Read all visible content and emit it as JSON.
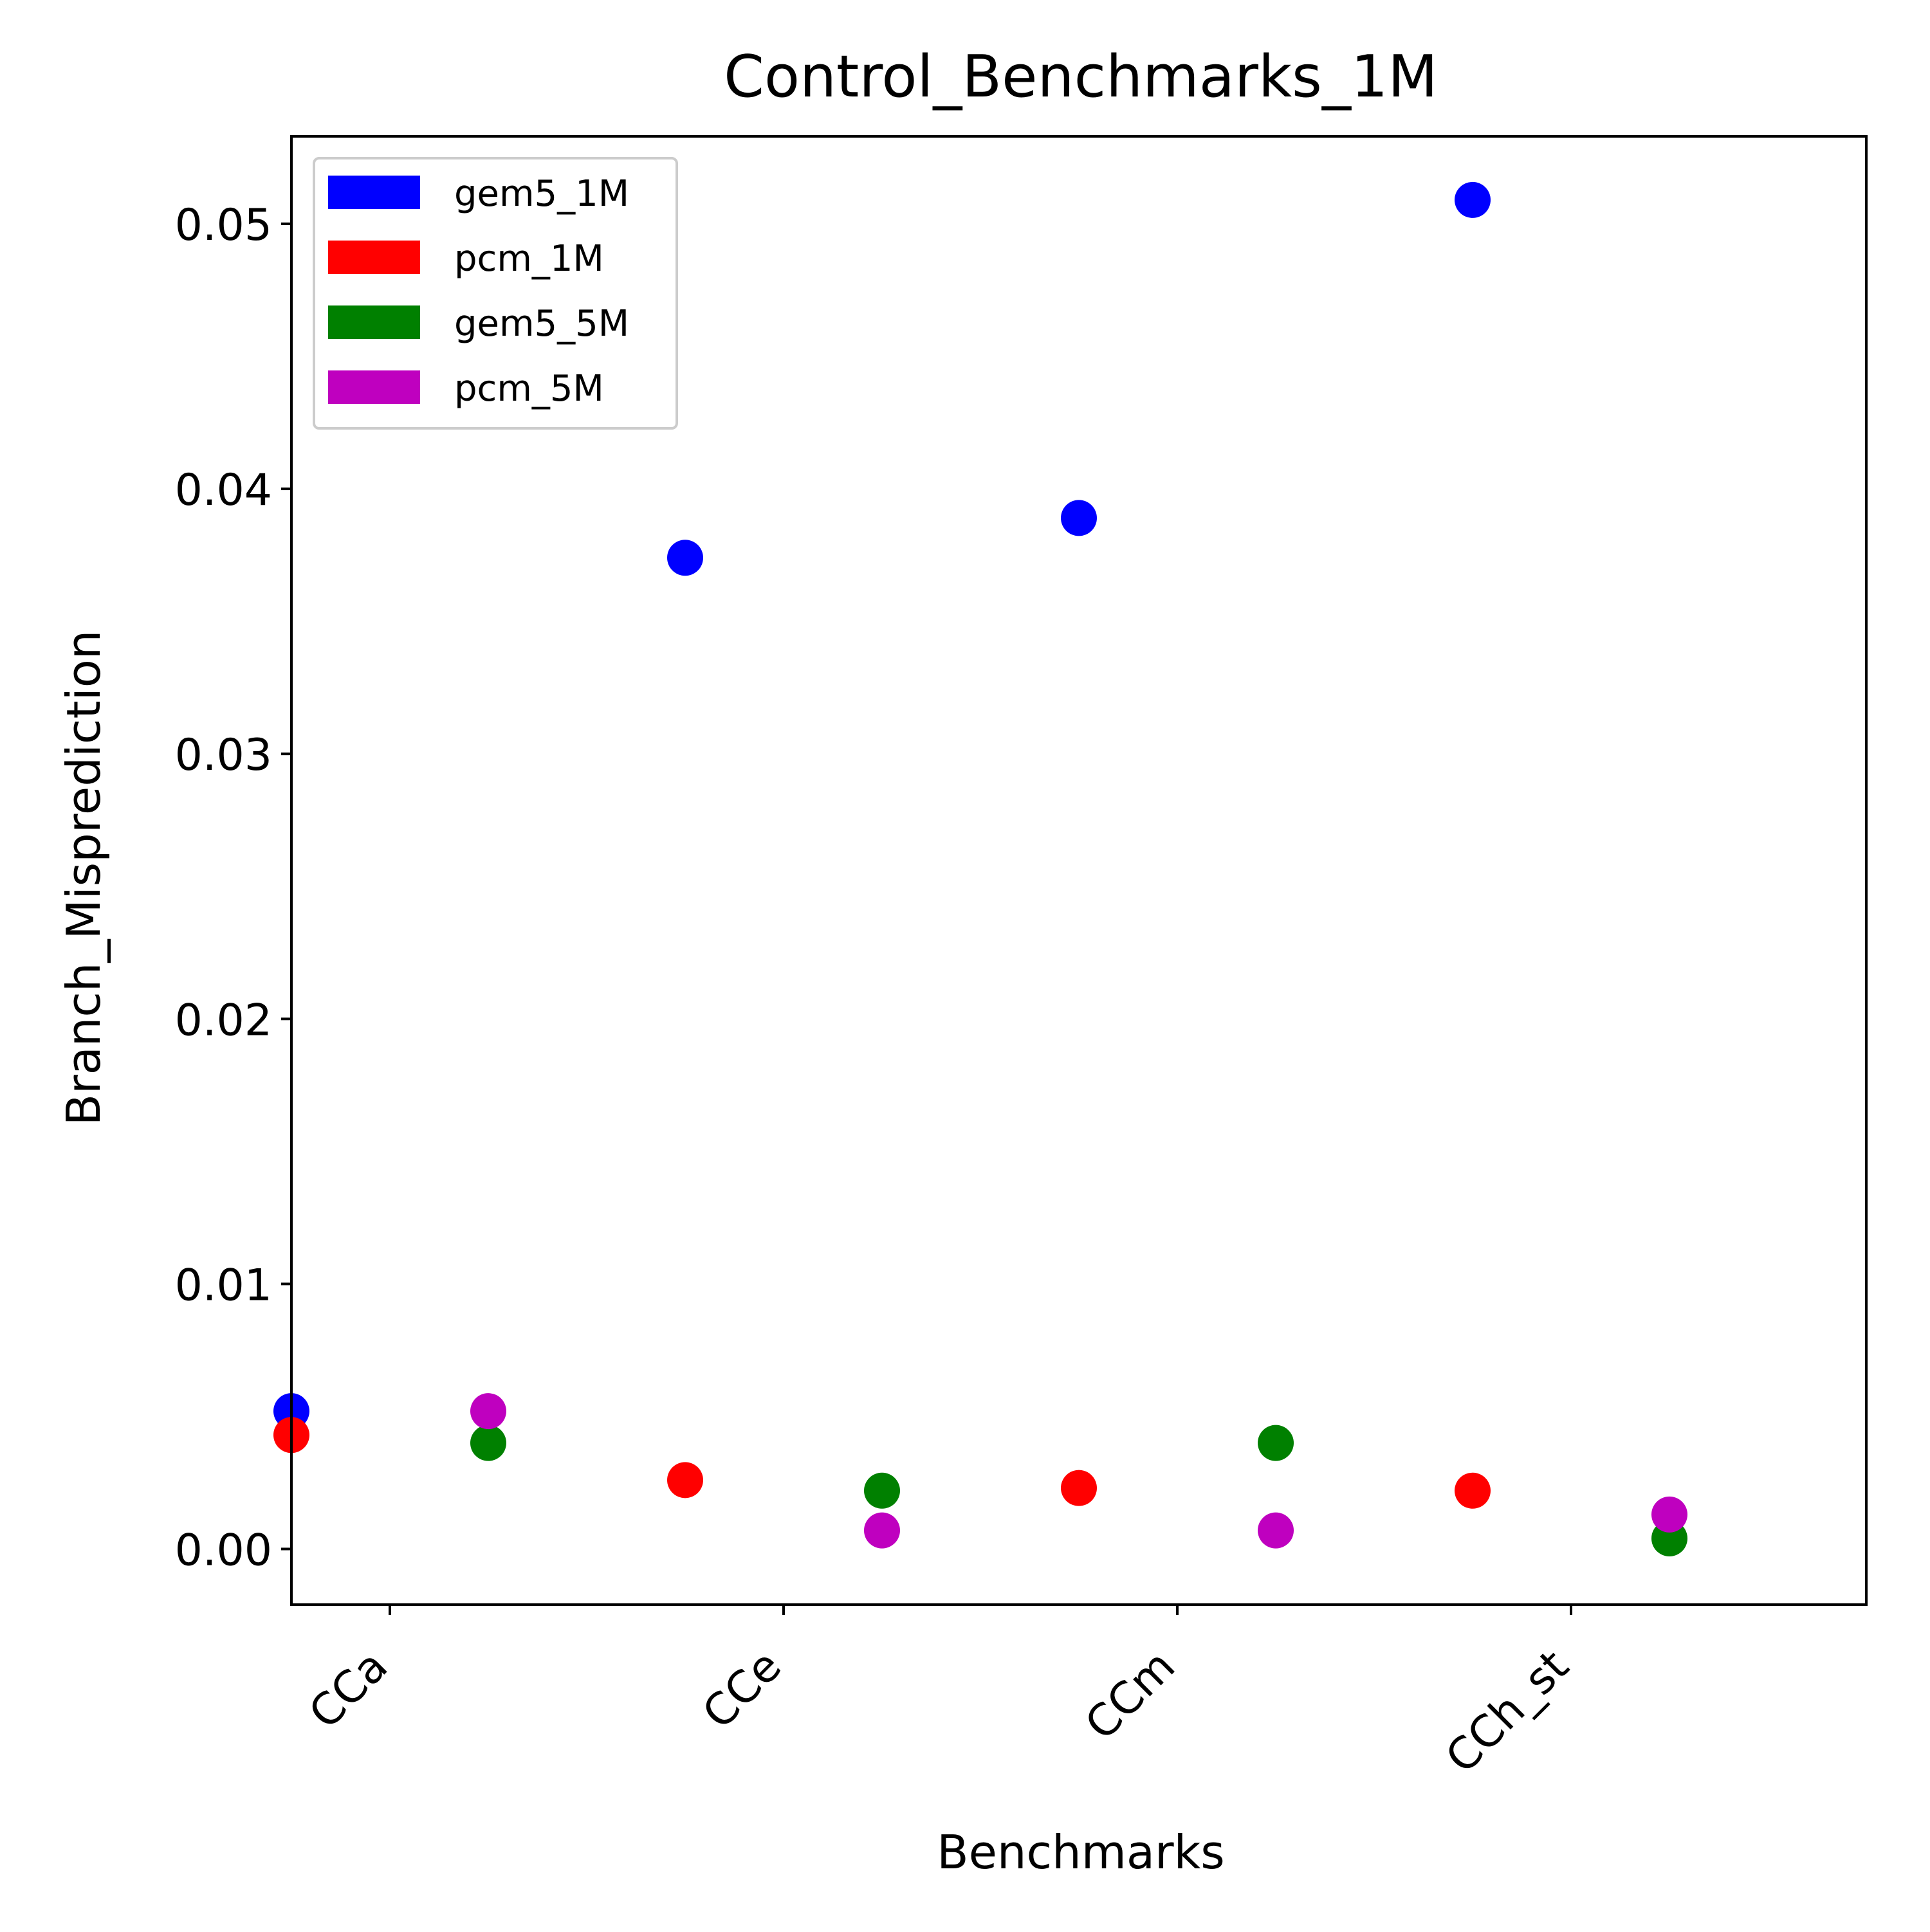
{
  "chart_data": {
    "type": "scatter",
    "title": "Control_Benchmarks_1M",
    "xlabel": "Benchmarks",
    "ylabel": "Branch_Misprediction",
    "categories": [
      "CCa",
      "CCe",
      "CCm",
      "CCh_st"
    ],
    "ylim": [
      -0.0021,
      0.0533
    ],
    "yticks": [
      "0.00",
      "0.01",
      "0.02",
      "0.03",
      "0.04",
      "0.05"
    ],
    "grid": false,
    "legend_position": "top-left",
    "series": [
      {
        "name": "gem5_1M",
        "color": "#0000ff",
        "offset": -0.5,
        "values": [
          0.0052,
          0.0374,
          0.0389,
          0.0509
        ]
      },
      {
        "name": "pcm_1M",
        "color": "#ff0000",
        "offset": -0.5,
        "values": [
          0.0043,
          0.0026,
          0.0023,
          0.0022
        ]
      },
      {
        "name": "gem5_5M",
        "color": "#008000",
        "offset": 0.5,
        "values": [
          0.004,
          0.0022,
          0.004,
          0.0004
        ]
      },
      {
        "name": "pcm_5M",
        "color": "#bf00bf",
        "offset": 0.5,
        "values": [
          0.0052,
          0.0007,
          0.0007,
          0.0013
        ]
      }
    ]
  }
}
